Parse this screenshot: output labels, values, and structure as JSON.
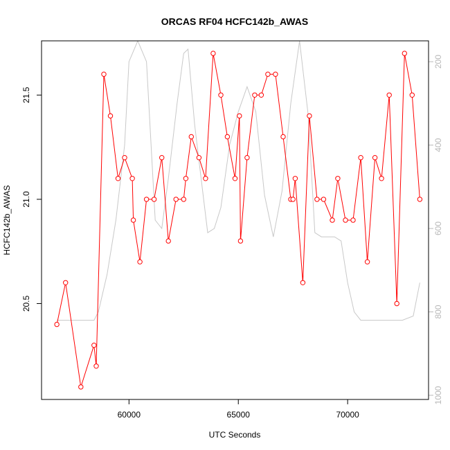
{
  "chart_data": {
    "type": "line",
    "title": "ORCAS RF04 HCFC142b_AWAS",
    "xlabel": "UTC Seconds",
    "ylabel": "HCFC142b_AWAS",
    "xlim": [
      56000,
      73700
    ],
    "ylim": [
      20.04,
      21.76
    ],
    "y2lim": [
      1010,
      150
    ],
    "x_ticks": [
      60000,
      65000,
      70000
    ],
    "x_tick_labels": [
      "60000",
      "65000",
      "70000"
    ],
    "y_ticks": [
      20.5,
      21.0,
      21.5
    ],
    "y_tick_labels": [
      "20.5",
      "21.0",
      "21.5"
    ],
    "y2_ticks": [
      200,
      400,
      600,
      800,
      1000
    ],
    "y2_tick_labels": [
      "200",
      "400",
      "600",
      "800",
      "1000"
    ],
    "series": [
      {
        "color": "#ff0000",
        "marker": "open-circle",
        "x": [
          56700,
          57100,
          57800,
          58400,
          58500,
          58850,
          59150,
          59500,
          59800,
          60150,
          60200,
          60500,
          60800,
          61150,
          61500,
          61800,
          62150,
          62500,
          62600,
          62850,
          63200,
          63500,
          63850,
          64200,
          64500,
          64850,
          65050,
          65100,
          65400,
          65750,
          66050,
          66350,
          66700,
          67050,
          67400,
          67500,
          67600,
          67950,
          68250,
          68600,
          68900,
          69300,
          69550,
          69900,
          70250,
          70600,
          70900,
          71250,
          71550,
          71900,
          72250,
          72600,
          72950,
          73300
        ],
        "values": [
          20.4,
          20.6,
          20.1,
          20.3,
          20.2,
          21.6,
          21.4,
          21.1,
          21.2,
          21.1,
          20.9,
          20.7,
          21.0,
          21.0,
          21.2,
          20.8,
          21.0,
          21.0,
          21.1,
          21.3,
          21.2,
          21.1,
          21.7,
          21.5,
          21.3,
          21.1,
          21.4,
          20.8,
          21.2,
          21.5,
          21.5,
          21.6,
          21.6,
          21.3,
          21.0,
          21.0,
          21.1,
          20.6,
          21.4,
          21.0,
          21.0,
          20.9,
          21.1,
          20.9,
          20.9,
          21.2,
          20.7,
          21.2,
          21.1,
          21.5,
          20.5,
          21.7,
          21.5,
          21.0
        ]
      },
      {
        "color": "#c8c8c8",
        "axis": "right",
        "x": [
          56700,
          57000,
          57500,
          58000,
          58400,
          58600,
          59000,
          59400,
          59800,
          60000,
          60400,
          60800,
          61200,
          61500,
          61800,
          62200,
          62500,
          62700,
          63000,
          63300,
          63600,
          63900,
          64200,
          64600,
          65000,
          65400,
          65800,
          66200,
          66600,
          67000,
          67400,
          67800,
          68200,
          68500,
          68800,
          69100,
          69400,
          69700,
          70000,
          70300,
          70600,
          71000,
          71500,
          72000,
          72500,
          73000,
          73300
        ],
        "values": [
          820,
          820,
          820,
          820,
          820,
          800,
          710,
          580,
          400,
          200,
          150,
          200,
          580,
          600,
          480,
          300,
          180,
          170,
          350,
          480,
          610,
          600,
          550,
          400,
          320,
          260,
          320,
          520,
          620,
          510,
          300,
          150,
          330,
          610,
          620,
          620,
          620,
          630,
          730,
          800,
          820,
          820,
          820,
          820,
          820,
          810,
          730
        ]
      }
    ]
  }
}
